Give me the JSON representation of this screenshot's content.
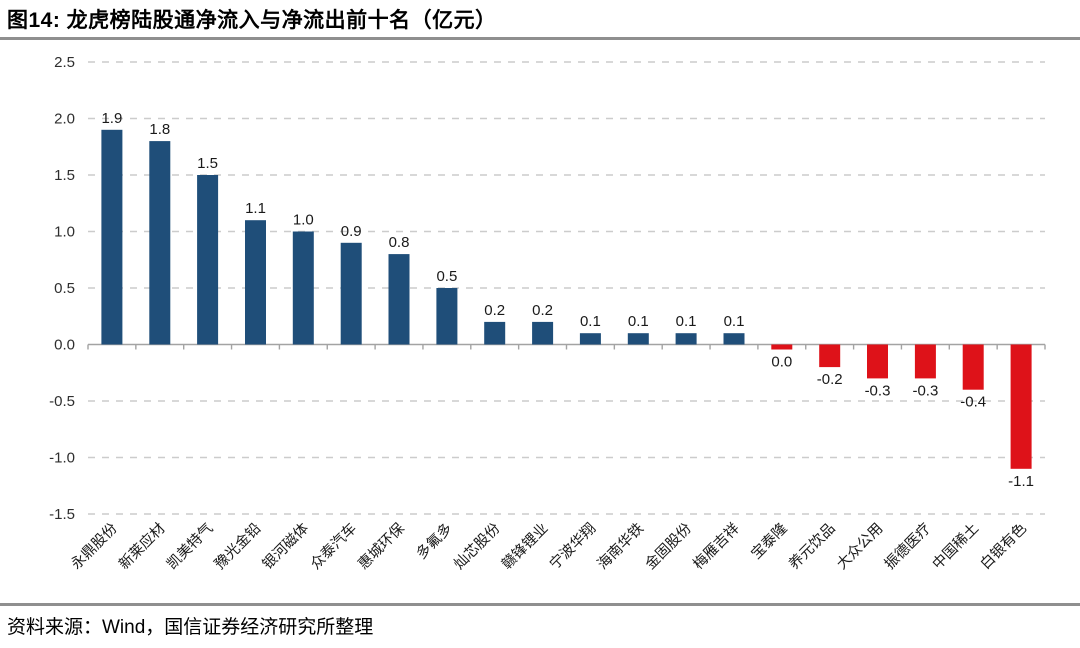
{
  "title": "图14: 龙虎榜陆股通净流入与净流出前十名（亿元）",
  "source": "资料来源：Wind，国信证券经济研究所整理",
  "chart_data": {
    "type": "bar",
    "title": "龙虎榜陆股通净流入与净流出前十名",
    "unit": "亿元",
    "xlabel": "",
    "ylabel": "",
    "categories": [
      "永鼎股份",
      "新莱应材",
      "凯美特气",
      "豫光金铅",
      "银河磁体",
      "众泰汽车",
      "惠城环保",
      "多氟多",
      "灿芯股份",
      "赣锋锂业",
      "宁波华翔",
      "海南华铁",
      "金固股份",
      "梅雁吉祥",
      "宝泰隆",
      "养元饮品",
      "大众公用",
      "振德医疗",
      "中国稀土",
      "白银有色"
    ],
    "values": [
      1.9,
      1.8,
      1.5,
      1.1,
      1.0,
      0.9,
      0.8,
      0.5,
      0.2,
      0.2,
      0.1,
      0.1,
      0.1,
      0.1,
      0.0,
      -0.2,
      -0.3,
      -0.3,
      -0.4,
      -1.1
    ],
    "labels": [
      "1.9",
      "1.8",
      "1.5",
      "1.1",
      "1.0",
      "0.9",
      "0.8",
      "0.5",
      "0.2",
      "0.2",
      "0.1",
      "0.1",
      "0.1",
      "0.1",
      "0.0",
      "-0.2",
      "-0.3",
      "-0.3",
      "-0.4",
      "-1.1"
    ],
    "ylim": [
      -1.5,
      2.5
    ],
    "ytick_step": 0.5,
    "yticks": [
      "2.5",
      "2.0",
      "1.5",
      "1.0",
      "0.5",
      "0.0",
      "-0.5",
      "-1.0",
      "-1.5"
    ],
    "grid": "horizontal-dashed",
    "legend": "none",
    "positive_color": "#1F4E79",
    "negative_color": "#DE1219"
  }
}
